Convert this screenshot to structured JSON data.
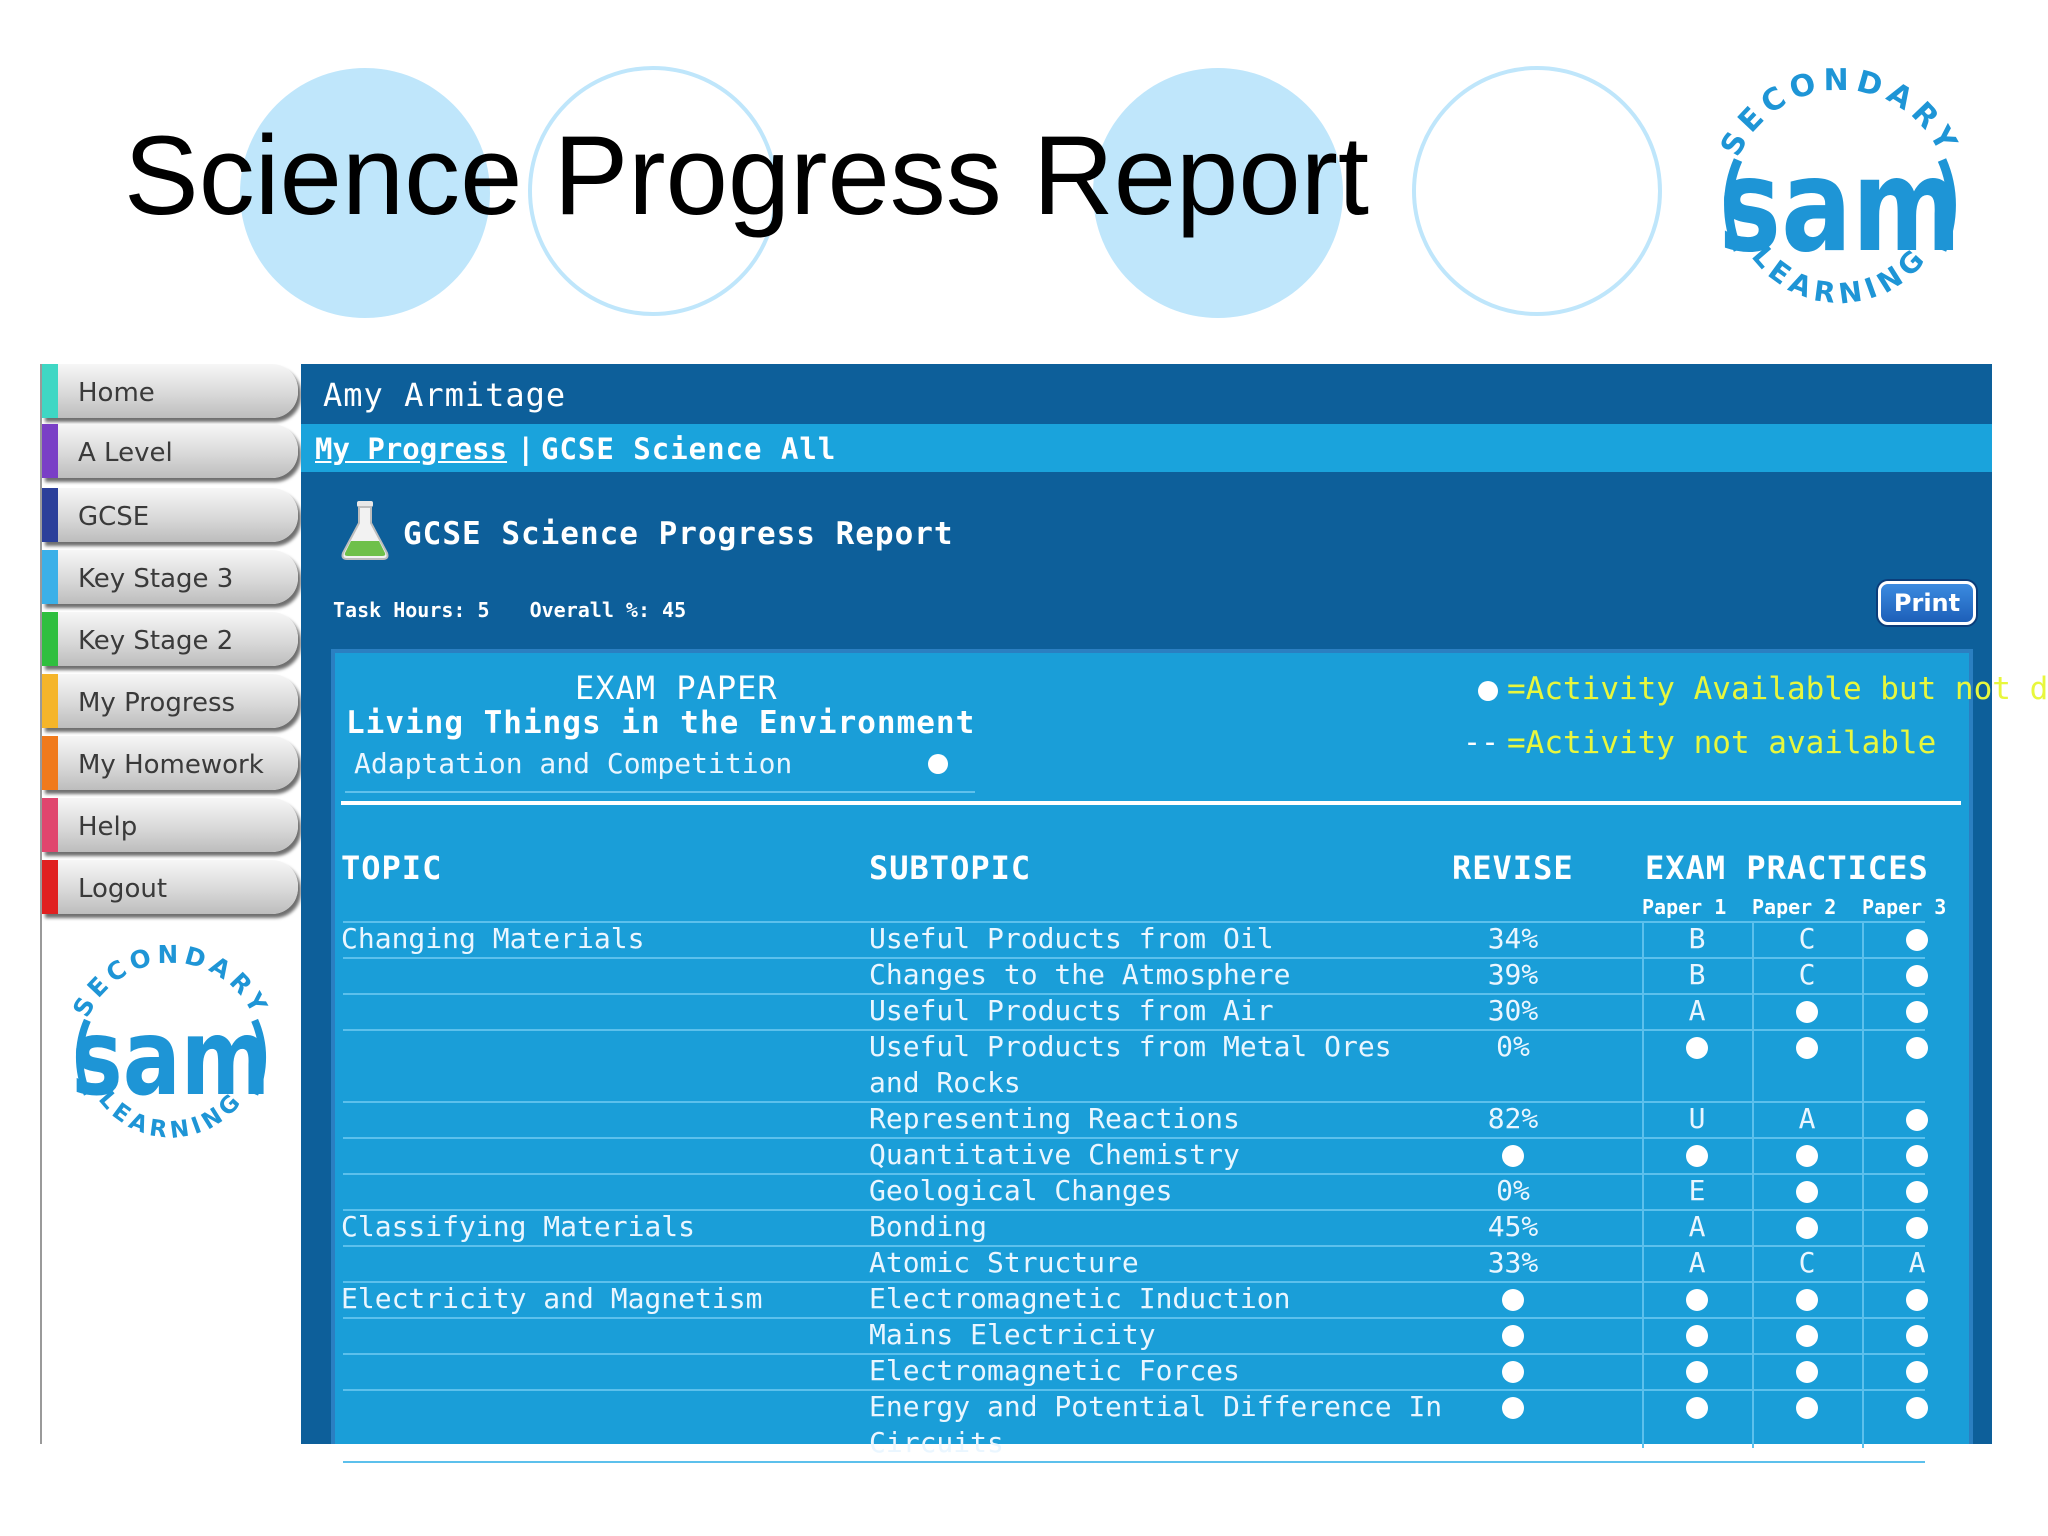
{
  "slide": {
    "title": "Science Progress Report"
  },
  "logo": {
    "top_text": "SECONDARY",
    "main_text": "sam",
    "bottom_text": "LEARNING"
  },
  "sidebar": {
    "items": [
      {
        "label": "Home",
        "color": "#3fd7c4"
      },
      {
        "label": "A Level",
        "color": "#7a3fc6"
      },
      {
        "label": "GCSE",
        "color": "#2b3f9a"
      },
      {
        "label": "Key Stage 3",
        "color": "#3bb0e8"
      },
      {
        "label": "Key Stage 2",
        "color": "#2fbf3f"
      },
      {
        "label": "My Progress",
        "color": "#f5b52a"
      },
      {
        "label": "My Homework",
        "color": "#f07a1c"
      },
      {
        "label": "Help",
        "color": "#e0466e"
      },
      {
        "label": "Logout",
        "color": "#e02020"
      }
    ]
  },
  "header": {
    "student": "Amy Armitage",
    "breadcrumb_link": "My Progress",
    "breadcrumb_sep": "|",
    "breadcrumb_current": "GCSE Science All"
  },
  "report": {
    "title": "GCSE Science Progress Report",
    "task_hours": "Task Hours: 5",
    "overall": "Overall %: 45",
    "print_label": "Print"
  },
  "exam": {
    "heading": "EXAM PAPER",
    "module": "Living Things in the Environment",
    "section": "Adaptation and Competition",
    "legend_available": "=Activity Available but not done",
    "legend_dash": "--",
    "legend_unavailable": "=Activity not available"
  },
  "table": {
    "headers": {
      "topic": "TOPIC",
      "subtopic": "SUBTOPIC",
      "revise": "REVISE",
      "exam": "EXAM PRACTICES"
    },
    "papers": [
      "Paper 1",
      "Paper 2",
      "Paper 3"
    ],
    "rows": [
      {
        "topic": "Changing Materials",
        "subtopic": "Useful Products from Oil",
        "revise": "34%",
        "p1": "B",
        "p2": "C",
        "p3": "dot"
      },
      {
        "topic": "",
        "subtopic": "Changes to the Atmosphere",
        "revise": "39%",
        "p1": "B",
        "p2": "C",
        "p3": "dot"
      },
      {
        "topic": "",
        "subtopic": "Useful Products from Air",
        "revise": "30%",
        "p1": "A",
        "p2": "dot",
        "p3": "dot"
      },
      {
        "topic": "",
        "subtopic": "Useful Products from Metal Ores",
        "subtopic2": "and Rocks",
        "revise": "0%",
        "p1": "dot",
        "p2": "dot",
        "p3": "dot"
      },
      {
        "topic": "",
        "subtopic": "Representing Reactions",
        "revise": "82%",
        "p1": "U",
        "p2": "A",
        "p3": "dot"
      },
      {
        "topic": "",
        "subtopic": "Quantitative Chemistry",
        "revise": "dot",
        "p1": "dot",
        "p2": "dot",
        "p3": "dot"
      },
      {
        "topic": "",
        "subtopic": "Geological Changes",
        "revise": "0%",
        "p1": "E",
        "p2": "dot",
        "p3": "dot"
      },
      {
        "topic": "Classifying Materials",
        "subtopic": "Bonding",
        "revise": "45%",
        "p1": "A",
        "p2": "dot",
        "p3": "dot"
      },
      {
        "topic": "",
        "subtopic": "Atomic Structure",
        "revise": "33%",
        "p1": "A",
        "p2": "C",
        "p3": "A"
      },
      {
        "topic": "Electricity and Magnetism",
        "subtopic": "Electromagnetic Induction",
        "revise": "dot",
        "p1": "dot",
        "p2": "dot",
        "p3": "dot"
      },
      {
        "topic": "",
        "subtopic": "Mains Electricity",
        "revise": "dot",
        "p1": "dot",
        "p2": "dot",
        "p3": "dot"
      },
      {
        "topic": "",
        "subtopic": "Electromagnetic Forces",
        "revise": "dot",
        "p1": "dot",
        "p2": "dot",
        "p3": "dot"
      },
      {
        "topic": "",
        "subtopic": "Energy and Potential Difference In",
        "subtopic2": "Circuits",
        "revise": "dot",
        "p1": "dot",
        "p2": "dot",
        "p3": "dot"
      }
    ]
  }
}
